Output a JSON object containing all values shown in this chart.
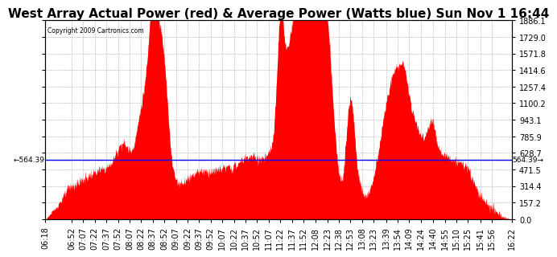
{
  "title": "West Array Actual Power (red) & Average Power (Watts blue) Sun Nov 1 16:44",
  "copyright": "Copyright 2009 Cartronics.com",
  "average_power": 564.39,
  "y_max": 1886.1,
  "y_min": 0.0,
  "y_ticks": [
    0.0,
    157.2,
    314.4,
    471.5,
    628.7,
    785.9,
    943.1,
    1100.2,
    1257.4,
    1414.6,
    1571.8,
    1729.0,
    1886.1
  ],
  "x_labels": [
    "06:18",
    "06:52",
    "07:07",
    "07:22",
    "07:37",
    "07:52",
    "08:07",
    "08:22",
    "08:37",
    "08:52",
    "09:07",
    "09:22",
    "09:37",
    "09:52",
    "10:07",
    "10:22",
    "10:37",
    "10:52",
    "11:07",
    "11:22",
    "11:37",
    "11:52",
    "12:08",
    "12:23",
    "12:38",
    "12:53",
    "13:08",
    "13:23",
    "13:39",
    "13:54",
    "14:09",
    "14:24",
    "14:40",
    "14:55",
    "15:10",
    "15:25",
    "15:41",
    "15:56",
    "16:22"
  ],
  "background_color": "#ffffff",
  "fill_color": "#ff0000",
  "line_color": "#0000ff",
  "grid_color": "#999999",
  "title_fontsize": 11,
  "axis_fontsize": 7
}
